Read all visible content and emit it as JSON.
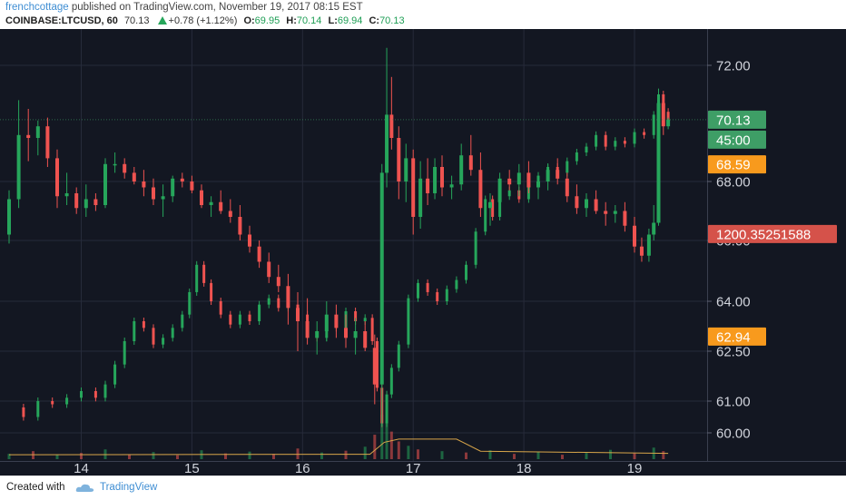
{
  "header": {
    "author": "frenchcottage",
    "published_text": "published on TradingView.com, November 19, 2017 08:15 EST",
    "symbol": "COINBASE:LTCUSD, 60",
    "last": "70.13",
    "change": "+0.78 (+1.12%)",
    "open_label": "O:",
    "open": "69.95",
    "high_label": "H:",
    "high": "70.14",
    "low_label": "L:",
    "low": "69.94",
    "close_label": "C:",
    "close": "70.13"
  },
  "footer": {
    "created_with": "Created with",
    "brand": "TradingView",
    "logo_icon": "tradingview-cloud-icon"
  },
  "colors": {
    "background": "#131722",
    "up": "#26a65b",
    "down": "#ef5350",
    "grid": "#262b3a",
    "axis_text": "#d1d4dc",
    "badge_green": "#3e9e66",
    "badge_orange": "#f89a1d",
    "badge_red": "#d5524a"
  },
  "chart_data": {
    "type": "candlestick",
    "symbol": "COINBASE:LTCUSD",
    "interval": "60",
    "x_ticks": [
      "14",
      "15",
      "16",
      "17",
      "18",
      "19"
    ],
    "y_ticks": [
      "72.00",
      "68.00",
      "66.00",
      "64.00",
      "62.50",
      "61.00",
      "60.00"
    ],
    "badges": [
      {
        "label": "70.13",
        "price": 70.13,
        "kind": "green"
      },
      {
        "label": "45:00",
        "price": 69.55,
        "kind": "green"
      },
      {
        "label": "68.59",
        "price": 68.59,
        "kind": "orange"
      },
      {
        "label": "1200.35251588",
        "price": 66.22,
        "kind": "red"
      },
      {
        "label": "62.94",
        "price": 62.94,
        "kind": "orange"
      }
    ],
    "price_candles": [
      {
        "hour": 0,
        "o": 66.2,
        "h": 67.7,
        "l": 65.9,
        "c": 67.4
      },
      {
        "hour": 4,
        "o": 67.4,
        "h": 70.8,
        "l": 67.1,
        "c": 69.6
      },
      {
        "hour": 8,
        "o": 69.6,
        "h": 70.5,
        "l": 68.7,
        "c": 69.5
      },
      {
        "hour": 12,
        "o": 69.5,
        "h": 70.1,
        "l": 68.9,
        "c": 69.9
      },
      {
        "hour": 16,
        "o": 69.9,
        "h": 70.2,
        "l": 68.5,
        "c": 68.8
      },
      {
        "hour": 20,
        "o": 68.8,
        "h": 69.1,
        "l": 67.1,
        "c": 67.5
      },
      {
        "hour": 24,
        "o": 67.5,
        "h": 68.3,
        "l": 67.2,
        "c": 67.6
      },
      {
        "hour": 28,
        "o": 67.6,
        "h": 67.8,
        "l": 66.9,
        "c": 67.1
      },
      {
        "hour": 32,
        "o": 67.1,
        "h": 67.9,
        "l": 66.8,
        "c": 67.4
      },
      {
        "hour": 36,
        "o": 67.4,
        "h": 67.6,
        "l": 67.0,
        "c": 67.2
      },
      {
        "hour": 40,
        "o": 67.2,
        "h": 68.8,
        "l": 67.1,
        "c": 68.6
      },
      {
        "hour": 44,
        "o": 68.6,
        "h": 69.0,
        "l": 68.3,
        "c": 68.6
      },
      {
        "hour": 48,
        "o": 68.6,
        "h": 68.8,
        "l": 68.1,
        "c": 68.3
      },
      {
        "hour": 52,
        "o": 68.3,
        "h": 68.5,
        "l": 67.9,
        "c": 68.0
      },
      {
        "hour": 56,
        "o": 68.0,
        "h": 68.4,
        "l": 67.5,
        "c": 67.8
      },
      {
        "hour": 60,
        "o": 67.8,
        "h": 68.1,
        "l": 67.2,
        "c": 67.4
      },
      {
        "hour": 64,
        "o": 67.4,
        "h": 67.9,
        "l": 66.8,
        "c": 67.5
      },
      {
        "hour": 68,
        "o": 67.5,
        "h": 68.2,
        "l": 67.3,
        "c": 68.1
      },
      {
        "hour": 72,
        "o": 68.1,
        "h": 68.3,
        "l": 67.8,
        "c": 68.0
      },
      {
        "hour": 76,
        "o": 68.0,
        "h": 68.2,
        "l": 67.6,
        "c": 67.7
      },
      {
        "hour": 80,
        "o": 67.7,
        "h": 67.9,
        "l": 67.1,
        "c": 67.2
      },
      {
        "hour": 84,
        "o": 67.2,
        "h": 67.5,
        "l": 66.8,
        "c": 67.3
      },
      {
        "hour": 88,
        "o": 67.3,
        "h": 67.7,
        "l": 66.9,
        "c": 67.0
      },
      {
        "hour": 92,
        "o": 67.0,
        "h": 67.4,
        "l": 66.6,
        "c": 66.8
      },
      {
        "hour": 96,
        "o": 66.8,
        "h": 67.2,
        "l": 66.0,
        "c": 66.2
      },
      {
        "hour": 100,
        "o": 66.2,
        "h": 66.5,
        "l": 65.6,
        "c": 65.8
      },
      {
        "hour": 104,
        "o": 65.8,
        "h": 66.0,
        "l": 65.1,
        "c": 65.3
      },
      {
        "hour": 108,
        "o": 65.3,
        "h": 65.6,
        "l": 64.6,
        "c": 64.8
      },
      {
        "hour": 112,
        "o": 64.8,
        "h": 65.2,
        "l": 64.3,
        "c": 64.5
      },
      {
        "hour": 116,
        "o": 64.5,
        "h": 64.9,
        "l": 63.3,
        "c": 63.8
      },
      {
        "hour": 120,
        "o": 63.8,
        "h": 64.3,
        "l": 62.5,
        "c": 63.4
      },
      {
        "hour": 124,
        "o": 63.4,
        "h": 64.1,
        "l": 62.7,
        "c": 62.9
      },
      {
        "hour": 128,
        "o": 62.9,
        "h": 63.4,
        "l": 62.4,
        "c": 63.1
      },
      {
        "hour": 132,
        "o": 63.1,
        "h": 64.0,
        "l": 62.8,
        "c": 63.6
      },
      {
        "hour": 136,
        "o": 63.6,
        "h": 63.9,
        "l": 62.9,
        "c": 63.2
      },
      {
        "hour": 140,
        "o": 63.2,
        "h": 63.6,
        "l": 62.6,
        "c": 62.9
      },
      {
        "hour": 144,
        "o": 62.9,
        "h": 63.5,
        "l": 62.4,
        "c": 63.1
      },
      {
        "hour": 148,
        "o": 63.1,
        "h": 63.4,
        "l": 62.5,
        "c": 62.6
      },
      {
        "hour": 152,
        "o": 62.6,
        "h": 63.0,
        "l": 60.9,
        "c": 61.5
      },
      {
        "hour": 155,
        "o": 61.5,
        "h": 68.6,
        "l": 60.2,
        "c": 68.3
      },
      {
        "hour": 157,
        "o": 68.3,
        "h": 72.6,
        "l": 67.8,
        "c": 70.3
      },
      {
        "hour": 159,
        "o": 70.3,
        "h": 71.6,
        "l": 69.1,
        "c": 69.5
      },
      {
        "hour": 162,
        "o": 69.5,
        "h": 69.9,
        "l": 67.4,
        "c": 68.0
      },
      {
        "hour": 165,
        "o": 68.0,
        "h": 69.3,
        "l": 67.3,
        "c": 68.8
      },
      {
        "hour": 168,
        "o": 68.8,
        "h": 69.1,
        "l": 66.2,
        "c": 66.8
      },
      {
        "hour": 171,
        "o": 66.8,
        "h": 68.7,
        "l": 66.4,
        "c": 68.1
      },
      {
        "hour": 174,
        "o": 68.1,
        "h": 68.8,
        "l": 67.2,
        "c": 67.6
      },
      {
        "hour": 177,
        "o": 67.6,
        "h": 68.8,
        "l": 67.4,
        "c": 68.5
      },
      {
        "hour": 180,
        "o": 68.5,
        "h": 68.9,
        "l": 67.5,
        "c": 67.8
      },
      {
        "hour": 184,
        "o": 67.8,
        "h": 68.2,
        "l": 67.4,
        "c": 67.9
      },
      {
        "hour": 188,
        "o": 67.9,
        "h": 69.3,
        "l": 67.7,
        "c": 68.9
      },
      {
        "hour": 192,
        "o": 68.9,
        "h": 69.6,
        "l": 68.2,
        "c": 68.4
      },
      {
        "hour": 196,
        "o": 68.4,
        "h": 69.0,
        "l": 66.8,
        "c": 67.1
      },
      {
        "hour": 200,
        "o": 67.1,
        "h": 67.6,
        "l": 66.5,
        "c": 67.3
      },
      {
        "hour": 204,
        "o": 67.3,
        "h": 68.3,
        "l": 67.0,
        "c": 68.1
      },
      {
        "hour": 208,
        "o": 68.1,
        "h": 68.4,
        "l": 67.7,
        "c": 67.9
      },
      {
        "hour": 212,
        "o": 67.9,
        "h": 68.6,
        "l": 67.5,
        "c": 68.3
      },
      {
        "hour": 216,
        "o": 68.3,
        "h": 68.7,
        "l": 67.6,
        "c": 67.8
      },
      {
        "hour": 220,
        "o": 67.8,
        "h": 68.2,
        "l": 67.4,
        "c": 68.0
      },
      {
        "hour": 224,
        "o": 68.0,
        "h": 68.6,
        "l": 67.7,
        "c": 68.4
      },
      {
        "hour": 228,
        "o": 68.4,
        "h": 68.8,
        "l": 67.9,
        "c": 68.1
      },
      {
        "hour": 232,
        "o": 68.1,
        "h": 68.3,
        "l": 67.3,
        "c": 67.5
      },
      {
        "hour": 236,
        "o": 67.5,
        "h": 67.9,
        "l": 66.9,
        "c": 67.1
      },
      {
        "hour": 240,
        "o": 67.1,
        "h": 67.6,
        "l": 66.8,
        "c": 67.4
      },
      {
        "hour": 244,
        "o": 67.4,
        "h": 67.7,
        "l": 66.9,
        "c": 67.0
      },
      {
        "hour": 248,
        "o": 67.0,
        "h": 67.3,
        "l": 66.5,
        "c": 66.9
      },
      {
        "hour": 252,
        "o": 66.9,
        "h": 67.2,
        "l": 66.6,
        "c": 67.0
      },
      {
        "hour": 256,
        "o": 67.0,
        "h": 67.3,
        "l": 66.3,
        "c": 66.5
      },
      {
        "hour": 260,
        "o": 66.5,
        "h": 66.8,
        "l": 65.6,
        "c": 65.8
      },
      {
        "hour": 263,
        "o": 65.8,
        "h": 66.1,
        "l": 65.3,
        "c": 65.5
      },
      {
        "hour": 266,
        "o": 65.5,
        "h": 66.4,
        "l": 65.3,
        "c": 66.2
      },
      {
        "hour": 268,
        "o": 66.2,
        "h": 67.2,
        "l": 66.0,
        "c": 66.6
      },
      {
        "hour": 270,
        "o": 66.6,
        "h": 71.2,
        "l": 66.5,
        "c": 70.7
      },
      {
        "hour": 272,
        "o": 70.7,
        "h": 71.0,
        "l": 69.6,
        "c": 69.9
      },
      {
        "hour": 274,
        "o": 69.9,
        "h": 70.2,
        "l": 69.8,
        "c": 70.13
      }
    ],
    "overlay_series": [
      {
        "hour": 0,
        "value": 60.8
      },
      {
        "hour": 6,
        "value": 60.5
      },
      {
        "hour": 12,
        "value": 61.0
      },
      {
        "hour": 18,
        "value": 60.9
      },
      {
        "hour": 24,
        "value": 61.1
      },
      {
        "hour": 30,
        "value": 61.3
      },
      {
        "hour": 36,
        "value": 61.1
      },
      {
        "hour": 40,
        "value": 61.5
      },
      {
        "hour": 44,
        "value": 62.1
      },
      {
        "hour": 48,
        "value": 62.8
      },
      {
        "hour": 52,
        "value": 63.4
      },
      {
        "hour": 56,
        "value": 63.2
      },
      {
        "hour": 60,
        "value": 62.7
      },
      {
        "hour": 64,
        "value": 62.9
      },
      {
        "hour": 68,
        "value": 63.2
      },
      {
        "hour": 72,
        "value": 63.6
      },
      {
        "hour": 75,
        "value": 64.3
      },
      {
        "hour": 78,
        "value": 65.2
      },
      {
        "hour": 81,
        "value": 64.6
      },
      {
        "hour": 84,
        "value": 64.0
      },
      {
        "hour": 88,
        "value": 63.6
      },
      {
        "hour": 92,
        "value": 63.3
      },
      {
        "hour": 96,
        "value": 63.6
      },
      {
        "hour": 100,
        "value": 63.4
      },
      {
        "hour": 104,
        "value": 63.9
      },
      {
        "hour": 108,
        "value": 64.1
      },
      {
        "hour": 112,
        "value": 63.8
      },
      {
        "hour": 116,
        "value": 63.9
      },
      {
        "hour": 120,
        "value": 63.6
      },
      {
        "hour": 124,
        "value": 63.0
      },
      {
        "hour": 128,
        "value": 62.9
      },
      {
        "hour": 132,
        "value": 63.3
      },
      {
        "hour": 136,
        "value": 63.2
      },
      {
        "hour": 140,
        "value": 63.7
      },
      {
        "hour": 144,
        "value": 63.4
      },
      {
        "hour": 148,
        "value": 63.5
      },
      {
        "hour": 151,
        "value": 62.8
      },
      {
        "hour": 153,
        "value": 61.4
      },
      {
        "hour": 155,
        "value": 60.3
      },
      {
        "hour": 157,
        "value": 61.2
      },
      {
        "hour": 159,
        "value": 62.0
      },
      {
        "hour": 162,
        "value": 62.7
      },
      {
        "hour": 166,
        "value": 64.1
      },
      {
        "hour": 170,
        "value": 64.6
      },
      {
        "hour": 174,
        "value": 64.3
      },
      {
        "hour": 178,
        "value": 64.0
      },
      {
        "hour": 182,
        "value": 64.4
      },
      {
        "hour": 186,
        "value": 64.7
      },
      {
        "hour": 190,
        "value": 65.2
      },
      {
        "hour": 194,
        "value": 66.3
      },
      {
        "hour": 198,
        "value": 67.4
      },
      {
        "hour": 201,
        "value": 66.8
      },
      {
        "hour": 204,
        "value": 67.5
      },
      {
        "hour": 208,
        "value": 67.7
      },
      {
        "hour": 212,
        "value": 67.4
      },
      {
        "hour": 216,
        "value": 67.9
      },
      {
        "hour": 220,
        "value": 68.2
      },
      {
        "hour": 224,
        "value": 68.5
      },
      {
        "hour": 228,
        "value": 68.3
      },
      {
        "hour": 232,
        "value": 68.7
      },
      {
        "hour": 236,
        "value": 69.0
      },
      {
        "hour": 240,
        "value": 69.2
      },
      {
        "hour": 244,
        "value": 69.6
      },
      {
        "hour": 248,
        "value": 69.2
      },
      {
        "hour": 252,
        "value": 69.4
      },
      {
        "hour": 256,
        "value": 69.3
      },
      {
        "hour": 260,
        "value": 69.7
      },
      {
        "hour": 264,
        "value": 69.6
      },
      {
        "hour": 268,
        "value": 70.3
      },
      {
        "hour": 270,
        "value": 71.0
      },
      {
        "hour": 272,
        "value": 70.4
      },
      {
        "hour": 274,
        "value": 70.13
      }
    ],
    "volume": {
      "bars": [
        {
          "hour": 0,
          "value": 0.12,
          "up": true
        },
        {
          "hour": 10,
          "value": 0.18,
          "up": false
        },
        {
          "hour": 20,
          "value": 0.1,
          "up": true
        },
        {
          "hour": 30,
          "value": 0.14,
          "up": false
        },
        {
          "hour": 40,
          "value": 0.22,
          "up": true
        },
        {
          "hour": 50,
          "value": 0.11,
          "up": false
        },
        {
          "hour": 60,
          "value": 0.16,
          "up": true
        },
        {
          "hour": 70,
          "value": 0.09,
          "up": false
        },
        {
          "hour": 80,
          "value": 0.2,
          "up": true
        },
        {
          "hour": 90,
          "value": 0.13,
          "up": false
        },
        {
          "hour": 100,
          "value": 0.17,
          "up": true
        },
        {
          "hour": 110,
          "value": 0.12,
          "up": false
        },
        {
          "hour": 120,
          "value": 0.24,
          "up": false
        },
        {
          "hour": 130,
          "value": 0.15,
          "up": true
        },
        {
          "hour": 140,
          "value": 0.19,
          "up": false
        },
        {
          "hour": 148,
          "value": 0.28,
          "up": true
        },
        {
          "hour": 152,
          "value": 0.55,
          "up": false
        },
        {
          "hour": 155,
          "value": 1.0,
          "up": true
        },
        {
          "hour": 157,
          "value": 0.85,
          "up": true
        },
        {
          "hour": 159,
          "value": 0.62,
          "up": false
        },
        {
          "hour": 162,
          "value": 0.4,
          "up": false
        },
        {
          "hour": 166,
          "value": 0.3,
          "up": true
        },
        {
          "hour": 170,
          "value": 0.22,
          "up": false
        },
        {
          "hour": 180,
          "value": 0.18,
          "up": true
        },
        {
          "hour": 190,
          "value": 0.15,
          "up": false
        },
        {
          "hour": 200,
          "value": 0.2,
          "up": true
        },
        {
          "hour": 210,
          "value": 0.12,
          "up": false
        },
        {
          "hour": 220,
          "value": 0.16,
          "up": true
        },
        {
          "hour": 230,
          "value": 0.1,
          "up": false
        },
        {
          "hour": 240,
          "value": 0.14,
          "up": true
        },
        {
          "hour": 250,
          "value": 0.21,
          "up": true
        },
        {
          "hour": 260,
          "value": 0.13,
          "up": false
        },
        {
          "hour": 268,
          "value": 0.26,
          "up": true
        },
        {
          "hour": 272,
          "value": 0.18,
          "up": false
        }
      ],
      "average": [
        {
          "hour": 0,
          "value": 0.1
        },
        {
          "hour": 150,
          "value": 0.11
        },
        {
          "hour": 156,
          "value": 0.38
        },
        {
          "hour": 162,
          "value": 0.45
        },
        {
          "hour": 186,
          "value": 0.45
        },
        {
          "hour": 196,
          "value": 0.18
        },
        {
          "hour": 274,
          "value": 0.13
        }
      ]
    }
  }
}
